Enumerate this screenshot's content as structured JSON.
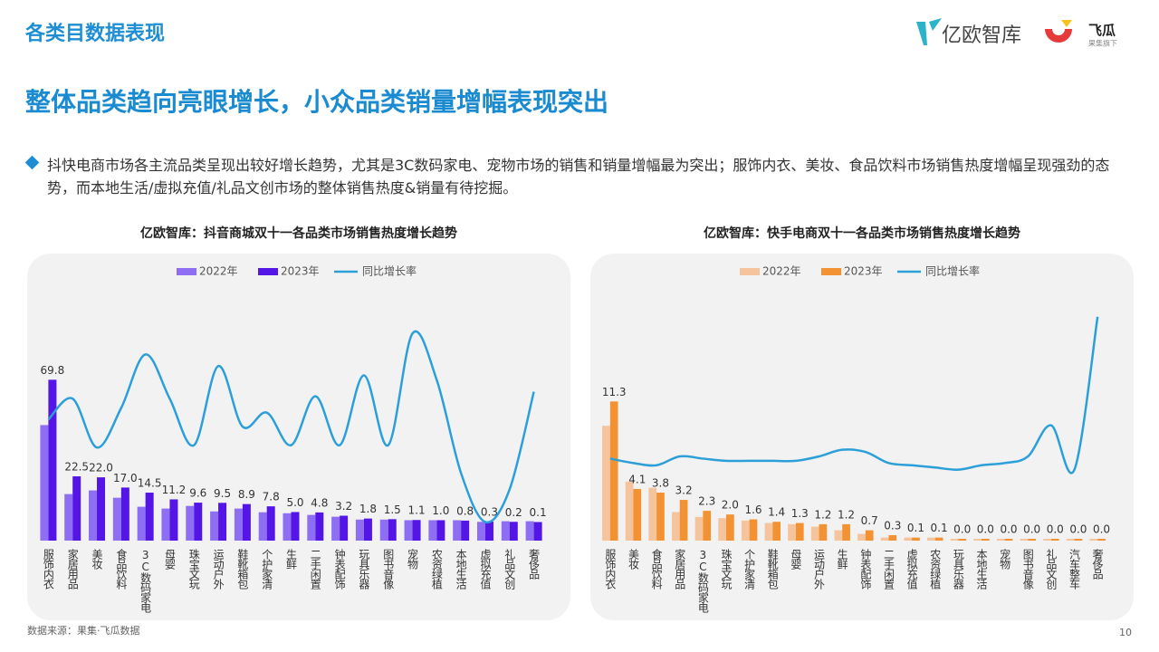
{
  "header": {
    "section": "各类目数据表现",
    "headline": "整体品类趋向亮眼增长，小众品类销量增幅表现突出",
    "bullet": "抖快电商市场各主流品类呈现出较好增长趋势，尤其是3C数码家电、宠物市场的销售和销量增幅最为突出；服饰内衣、美妆、食品饮料市场销售热度增幅呈现强劲的态势，而本地生活/虚拟充值/礼品文创市场的整体销售热度&销量有待挖掘。"
  },
  "logo": {
    "brand": "亿欧智库",
    "partner": "飞瓜",
    "partner_sub": "果集旗下"
  },
  "footer": {
    "source": "数据来源：果集·飞瓜数据",
    "page": "10"
  },
  "chart_data": [
    {
      "type": "bar",
      "title": "亿欧智库：抖音商城双十一各品类市场销售热度增长趋势",
      "legend": "top",
      "categories": [
        "服饰内衣",
        "家居用品",
        "美妆",
        "食品饮料",
        "3C数码家电",
        "母婴",
        "珠宝文玩",
        "运动户外",
        "鞋靴箱包",
        "个护家清",
        "生鲜",
        "二手闲置",
        "钟表配饰",
        "玩具乐器",
        "图书音像",
        "宠物",
        "农资绿植",
        "本地生活",
        "虚拟充值",
        "礼品文创",
        "奢侈品"
      ],
      "ylim": [
        -9,
        105
      ],
      "y2lim": [
        0,
        100
      ],
      "series": [
        {
          "name": "2022年",
          "color": "#8e6ff3",
          "values": [
            47.6,
            13.8,
            15.6,
            12,
            7.6,
            6.7,
            8,
            5.3,
            6.7,
            4.9,
            4.4,
            3.6,
            2.7,
            1.3,
            1.3,
            1,
            1,
            1,
            0.2,
            0.5,
            0.5
          ]
        },
        {
          "name": "2023年",
          "color": "#5316e6",
          "values": [
            69.8,
            22.5,
            22.0,
            17.0,
            14.5,
            11.2,
            9.6,
            9.5,
            8.9,
            7.8,
            5.0,
            4.8,
            3.2,
            1.8,
            1.5,
            1.1,
            1.0,
            0.8,
            0.3,
            0.2,
            0.1
          ],
          "value_labels": [
            "69.8",
            "22.5",
            "22.0",
            "17.0",
            "14.5",
            "11.2",
            "9.6",
            "9.5",
            "8.9",
            "7.8",
            "5.0",
            "4.8",
            "3.2",
            "1.8",
            "1.5",
            "1.1",
            "1.0",
            "0.8",
            "0.3",
            "0.2",
            "0.1"
          ]
        },
        {
          "name": "同比增长率",
          "color": "#2c9fd9",
          "axis": "y2",
          "values": [
            52,
            61,
            40,
            57,
            80,
            61,
            41,
            75,
            49,
            55,
            41,
            62,
            41,
            71,
            41,
            89,
            69,
            29,
            8,
            22,
            64
          ]
        }
      ]
    },
    {
      "type": "bar",
      "title": "亿欧智库：快手电商双十一各品类市场销售热度增长趋势",
      "legend": "top",
      "categories": [
        "服饰内衣",
        "美妆",
        "食品饮料",
        "家居用品",
        "3C数码家电",
        "珠宝文玩",
        "个护家清",
        "鞋靴箱包",
        "母婴",
        "运动户外",
        "生鲜",
        "钟表配饰",
        "二手闲置",
        "虚拟充值",
        "农资绿植",
        "玩具乐器",
        "本地生活",
        "宠物",
        "图书音像",
        "礼品文创",
        "汽车整车",
        "奢侈品"
      ],
      "ylim": [
        -0.15,
        19
      ],
      "y2lim": [
        0,
        105
      ],
      "series": [
        {
          "name": "2022年",
          "color": "#f5c49c",
          "values": [
            9.3,
            4.7,
            4.2,
            2.2,
            1.8,
            1.7,
            1.5,
            1.3,
            1.2,
            1.0,
            0.7,
            0.4,
            0.1,
            0.1,
            0.1,
            0,
            0,
            0,
            0,
            0,
            0,
            0
          ]
        },
        {
          "name": "2023年",
          "color": "#f39232",
          "values": [
            11.3,
            4.1,
            3.8,
            3.2,
            2.3,
            2.0,
            1.6,
            1.4,
            1.3,
            1.2,
            1.2,
            0.7,
            0.3,
            0.1,
            0.1,
            0,
            0,
            0,
            0,
            0,
            0,
            0
          ],
          "value_labels": [
            "11.3",
            "4.1",
            "3.8",
            "3.2",
            "2.3",
            "2.0",
            "1.6",
            "1.4",
            "1.3",
            "1.2",
            "1.2",
            "0.7",
            "0.3",
            "0.1",
            "0.1",
            "0.0",
            "0.0",
            "0.0",
            "0.0",
            "0.0",
            "0.0",
            "0.0"
          ]
        },
        {
          "name": "同比增长率",
          "color": "#2c9fd9",
          "axis": "y2",
          "values": [
            37,
            35,
            34,
            38,
            37,
            36,
            36,
            36,
            36,
            38,
            41,
            40,
            35,
            34,
            33,
            32,
            34,
            35,
            38,
            52,
            32,
            101
          ]
        }
      ]
    }
  ]
}
